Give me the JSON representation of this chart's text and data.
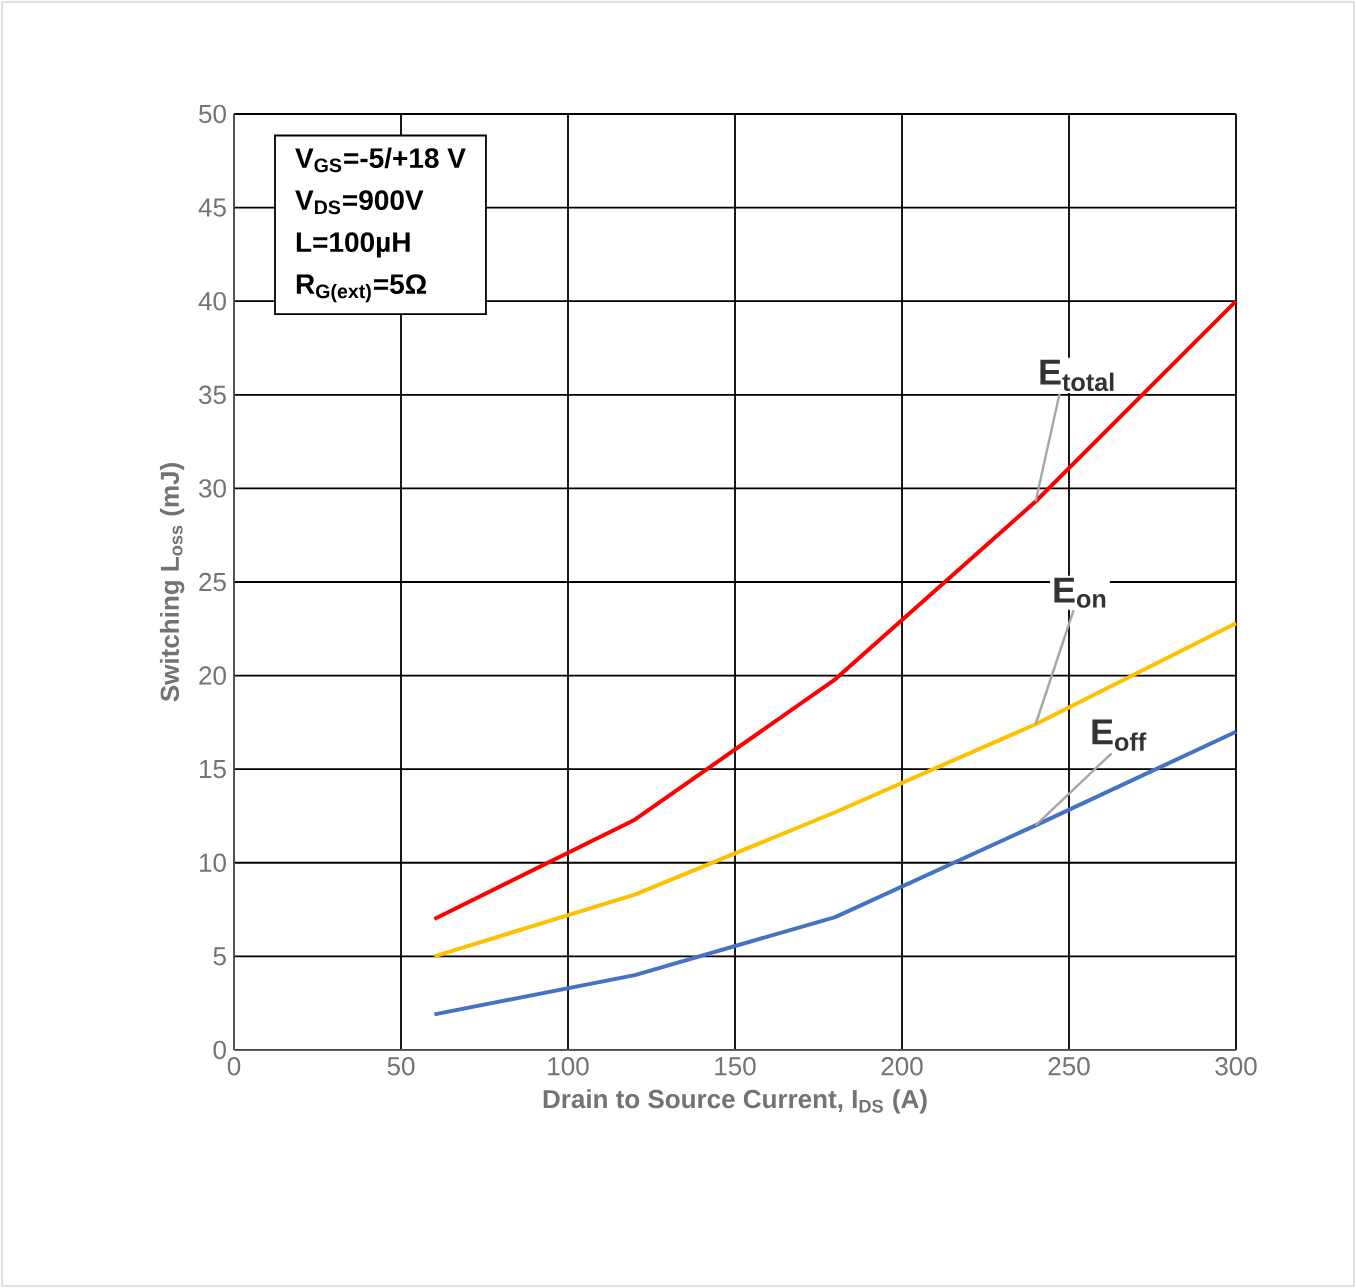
{
  "chart_data": {
    "type": "line",
    "xlabel": "Drain to Source Current, I$_{DS}$ (A)",
    "ylabel": "Switching L$_{oss}$ (mJ)",
    "x": [
      60,
      120,
      180,
      240,
      300
    ],
    "series": [
      {
        "name": "E$_{total}$",
        "color": "#ff0000",
        "values": [
          7,
          12.3,
          19.8,
          29.3,
          40
        ]
      },
      {
        "name": "E$_{on}$",
        "color": "#ffc000",
        "values": [
          5,
          8.3,
          12.7,
          17.4,
          22.8
        ]
      },
      {
        "name": "E$_{off}$",
        "color": "#4472c4",
        "values": [
          1.9,
          4,
          7.1,
          12,
          17
        ]
      }
    ],
    "xlim": [
      0,
      300
    ],
    "xticks": [
      0,
      50,
      100,
      150,
      200,
      250,
      300
    ],
    "ylim": [
      0,
      50
    ],
    "yticks": [
      0,
      5,
      10,
      15,
      20,
      25,
      30,
      35,
      40,
      45,
      50
    ],
    "grid": true,
    "legend": false,
    "marker": "none",
    "line_style": "solid",
    "annotations": [
      "V$_{GS}$=-5/+18 V",
      "V$_{DS}$=900V",
      "L=100µH",
      "R$_{G(ext)}$=5Ω"
    ]
  }
}
